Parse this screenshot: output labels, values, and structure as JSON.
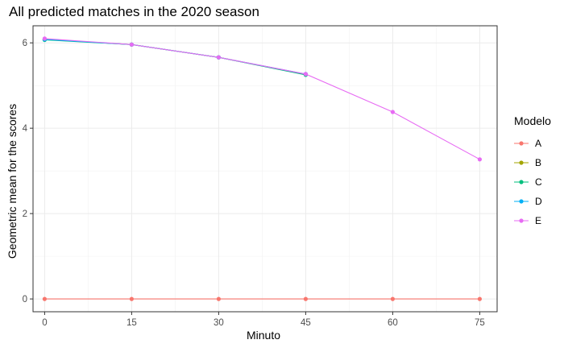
{
  "chart_data": {
    "type": "line",
    "title": "All predicted matches in the 2020 season",
    "xlabel": "Minuto",
    "ylabel": "Geometric mean for the scores",
    "x": [
      0,
      15,
      30,
      45,
      60,
      75
    ],
    "xlim": [
      -2,
      78
    ],
    "ylim": [
      -0.3,
      6.4
    ],
    "xticks": [
      0,
      15,
      30,
      45,
      60,
      75
    ],
    "yticks": [
      0,
      2,
      4,
      6
    ],
    "grid": true,
    "legend": {
      "title": "Modelo",
      "placement": "right"
    },
    "series": [
      {
        "name": "A",
        "color": "#F8766D",
        "values": [
          0,
          0,
          0,
          0,
          0,
          0
        ]
      },
      {
        "name": "B",
        "color": "#A3A500",
        "values": [
          6.08,
          5.96,
          5.66,
          5.26,
          null,
          null
        ]
      },
      {
        "name": "C",
        "color": "#00BF7D",
        "values": [
          6.07,
          5.96,
          5.66,
          5.25,
          null,
          null
        ]
      },
      {
        "name": "D",
        "color": "#00B0F6",
        "values": [
          6.08,
          5.96,
          5.66,
          5.27,
          null,
          null
        ]
      },
      {
        "name": "E",
        "color": "#E76BF3",
        "values": [
          6.1,
          5.96,
          5.66,
          5.27,
          4.38,
          3.27
        ]
      }
    ]
  }
}
